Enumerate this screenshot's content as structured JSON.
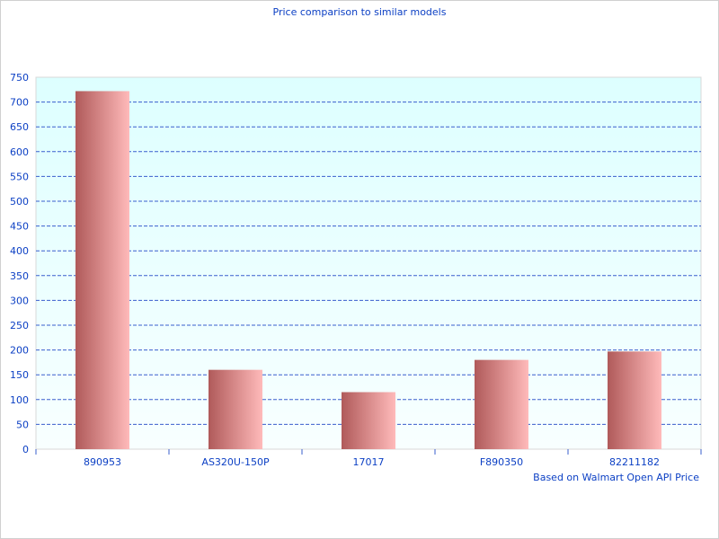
{
  "chart_data": {
    "type": "bar",
    "title": "Price comparison to similar models",
    "categories": [
      "890953",
      "AS320U-150P",
      "17017",
      "F890350",
      "82211182"
    ],
    "values": [
      722,
      160,
      115,
      180,
      197
    ],
    "xlabel": "",
    "ylabel": "",
    "ylim": [
      0,
      750
    ],
    "yticks": [
      0,
      50,
      100,
      150,
      200,
      250,
      300,
      350,
      400,
      450,
      500,
      550,
      600,
      650,
      700,
      750
    ],
    "grid": "horizontal dashed",
    "annotation": "Based on Walmart Open API Price",
    "colors": {
      "bar_dark": "#b05a5a",
      "bar_light": "#ffbaba",
      "grid": "#3a5fcd",
      "text": "#0b3fc4",
      "plot_bg_top": "#ddffff",
      "plot_bg_bottom": "#f8ffff"
    }
  }
}
